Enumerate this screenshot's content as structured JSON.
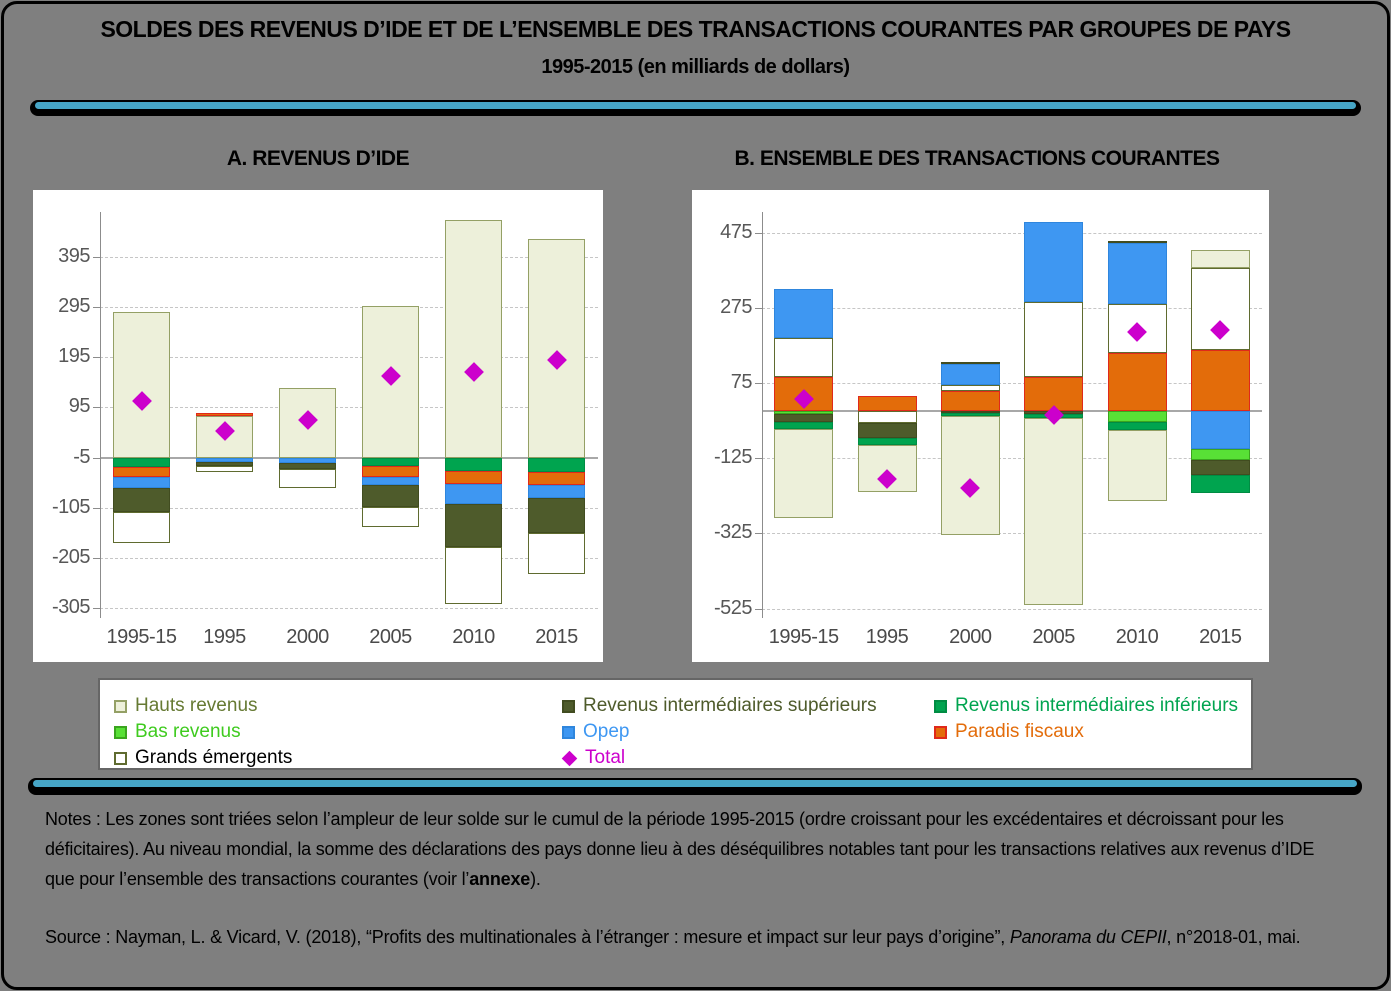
{
  "header": {
    "title": "SOLDES DES REVENUS D’IDE ET DE L’ENSEMBLE DES TRANSACTIONS COURANTES PAR GROUPES DE PAYS",
    "subtitle": "1995-2015 (en milliards de dollars)"
  },
  "colors": {
    "background": "#7f7f7f",
    "panel_bg": "#ffffff",
    "divider_black": "#000000",
    "divider_teal": "#46a5c6",
    "grid": "#c6c6c6",
    "baseline": "#a8a8a8",
    "axis": "#8c8c8c",
    "tick_text": "#575757"
  },
  "series_meta": {
    "hauts_revenus": {
      "label": "Hauts revenus",
      "fill": "#edf0da",
      "border": "#94a065",
      "text": "#667a33"
    },
    "rev_int_sup": {
      "label": "Revenus intermédiaires supérieurs",
      "fill": "#4e5b2b",
      "border": "#414c20",
      "text": "#4e5b2b"
    },
    "rev_int_inf": {
      "label": "Revenus intermédiaires inférieurs",
      "fill": "#00a44f",
      "border": "#008c43",
      "text": "#00a44f"
    },
    "bas_revenus": {
      "label": "Bas revenus",
      "fill": "#58e036",
      "border": "#3aa51e",
      "text": "#3fcb1f"
    },
    "opep": {
      "label": "Opep",
      "fill": "#3e97f2",
      "border": "#2f86dd",
      "text": "#3e97f2"
    },
    "paradis_fiscaux": {
      "label": "Paradis fiscaux",
      "fill": "#e36c0a",
      "border": "#e0291a",
      "text": "#e36c0a"
    },
    "grands_emergents": {
      "label": "Grands émergents",
      "fill": "#ffffff",
      "border": "#5f6b2f",
      "text": "#000000"
    },
    "total": {
      "label": "Total",
      "fill": "#cc00cc",
      "border": "#b000b0",
      "text": "#cc00cc"
    }
  },
  "legend": {
    "order": [
      "hauts_revenus",
      "rev_int_sup",
      "rev_int_inf",
      "bas_revenus",
      "opep",
      "paradis_fiscaux",
      "grands_emergents",
      "total"
    ]
  },
  "chart_data": [
    {
      "id": "revenus_ide",
      "type": "bar",
      "title": "A. REVENUS D’IDE",
      "unit": "milliards de dollars",
      "categories": [
        "1995-15",
        "1995",
        "2000",
        "2005",
        "2010",
        "2015"
      ],
      "yticks": [
        395,
        295,
        195,
        95,
        -5,
        -105,
        -205,
        -305
      ],
      "ylim": [
        -325,
        485
      ],
      "baseline": -5,
      "grid": true,
      "bars": [
        {
          "category": "1995-15",
          "total": 107,
          "segments": [
            {
              "s": "hauts_revenus",
              "v": [
                -5,
                285
              ]
            },
            {
              "s": "rev_int_inf",
              "v": [
                -5,
                -24
              ]
            },
            {
              "s": "paradis_fiscaux",
              "v": [
                -24,
                -43
              ]
            },
            {
              "s": "opep",
              "v": [
                -43,
                -65
              ]
            },
            {
              "s": "rev_int_sup",
              "v": [
                -65,
                -113
              ]
            },
            {
              "s": "grands_emergents",
              "v": [
                -113,
                -176
              ]
            }
          ]
        },
        {
          "category": "1995",
          "total": 48,
          "segments": [
            {
              "s": "hauts_revenus",
              "v": [
                -5,
                78
              ]
            },
            {
              "s": "paradis_fiscaux",
              "v": [
                78,
                83
              ]
            },
            {
              "s": "opep",
              "v": [
                -5,
                -14
              ]
            },
            {
              "s": "rev_int_sup",
              "v": [
                -14,
                -22
              ]
            },
            {
              "s": "grands_emergents",
              "v": [
                -22,
                -33
              ]
            }
          ]
        },
        {
          "category": "2000",
          "total": 70,
          "segments": [
            {
              "s": "hauts_revenus",
              "v": [
                -5,
                133
              ]
            },
            {
              "s": "opep",
              "v": [
                -5,
                -16
              ]
            },
            {
              "s": "rev_int_sup",
              "v": [
                -16,
                -28
              ]
            },
            {
              "s": "grands_emergents",
              "v": [
                -28,
                -66
              ]
            }
          ]
        },
        {
          "category": "2005",
          "total": 158,
          "segments": [
            {
              "s": "hauts_revenus",
              "v": [
                -5,
                297
              ]
            },
            {
              "s": "rev_int_inf",
              "v": [
                -5,
                -21
              ]
            },
            {
              "s": "paradis_fiscaux",
              "v": [
                -21,
                -43
              ]
            },
            {
              "s": "opep",
              "v": [
                -43,
                -59
              ]
            },
            {
              "s": "rev_int_sup",
              "v": [
                -59,
                -103
              ]
            },
            {
              "s": "grands_emergents",
              "v": [
                -103,
                -143
              ]
            }
          ]
        },
        {
          "category": "2010",
          "total": 165,
          "segments": [
            {
              "s": "hauts_revenus",
              "v": [
                -5,
                470
              ]
            },
            {
              "s": "rev_int_inf",
              "v": [
                -5,
                -32
              ]
            },
            {
              "s": "paradis_fiscaux",
              "v": [
                -32,
                -57
              ]
            },
            {
              "s": "opep",
              "v": [
                -57,
                -97
              ]
            },
            {
              "s": "rev_int_sup",
              "v": [
                -97,
                -184
              ]
            },
            {
              "s": "grands_emergents",
              "v": [
                -184,
                -297
              ]
            }
          ]
        },
        {
          "category": "2015",
          "total": 190,
          "segments": [
            {
              "s": "hauts_revenus",
              "v": [
                -5,
                432
              ]
            },
            {
              "s": "rev_int_inf",
              "v": [
                -5,
                -33
              ]
            },
            {
              "s": "paradis_fiscaux",
              "v": [
                -33,
                -59
              ]
            },
            {
              "s": "opep",
              "v": [
                -59,
                -85
              ]
            },
            {
              "s": "rev_int_sup",
              "v": [
                -85,
                -155
              ]
            },
            {
              "s": "grands_emergents",
              "v": [
                -155,
                -238
              ]
            }
          ]
        }
      ]
    },
    {
      "id": "transactions_courantes",
      "type": "bar",
      "title": "B. ENSEMBLE DES TRANSACTIONS COURANTES",
      "unit": "milliards de dollars",
      "categories": [
        "1995-15",
        "1995",
        "2000",
        "2005",
        "2010",
        "2015"
      ],
      "yticks": [
        475,
        275,
        75,
        -125,
        -325,
        -525
      ],
      "ylim": [
        -550,
        530
      ],
      "baseline": 0,
      "grid": true,
      "bars": [
        {
          "category": "1995-15",
          "total": 32,
          "segments": [
            {
              "s": "paradis_fiscaux",
              "v": [
                0,
                90
              ]
            },
            {
              "s": "grands_emergents",
              "v": [
                90,
                195
              ]
            },
            {
              "s": "opep",
              "v": [
                195,
                325
              ]
            },
            {
              "s": "bas_revenus",
              "v": [
                0,
                -8
              ]
            },
            {
              "s": "rev_int_sup",
              "v": [
                -8,
                -28
              ]
            },
            {
              "s": "rev_int_inf",
              "v": [
                -28,
                -48
              ]
            },
            {
              "s": "hauts_revenus",
              "v": [
                -48,
                -285
              ]
            }
          ]
        },
        {
          "category": "1995",
          "total": -180,
          "segments": [
            {
              "s": "paradis_fiscaux",
              "v": [
                0,
                40
              ]
            },
            {
              "s": "grands_emergents",
              "v": [
                0,
                -30
              ]
            },
            {
              "s": "rev_int_sup",
              "v": [
                -30,
                -72
              ]
            },
            {
              "s": "rev_int_inf",
              "v": [
                -72,
                -90
              ]
            },
            {
              "s": "hauts_revenus",
              "v": [
                -90,
                -215
              ]
            }
          ]
        },
        {
          "category": "2000",
          "total": -205,
          "segments": [
            {
              "s": "paradis_fiscaux",
              "v": [
                0,
                55
              ]
            },
            {
              "s": "grands_emergents",
              "v": [
                55,
                70
              ]
            },
            {
              "s": "opep",
              "v": [
                70,
                125
              ]
            },
            {
              "s": "rev_int_sup",
              "v": [
                125,
                132
              ]
            },
            {
              "s": "rev_int_sup",
              "v": [
                0,
                -6
              ]
            },
            {
              "s": "rev_int_inf",
              "v": [
                -6,
                -13
              ]
            },
            {
              "s": "hauts_revenus",
              "v": [
                -13,
                -330
              ]
            }
          ]
        },
        {
          "category": "2005",
          "total": -10,
          "segments": [
            {
              "s": "paradis_fiscaux",
              "v": [
                0,
                92
              ]
            },
            {
              "s": "grands_emergents",
              "v": [
                92,
                290
              ]
            },
            {
              "s": "opep",
              "v": [
                290,
                503
              ]
            },
            {
              "s": "rev_int_sup",
              "v": [
                0,
                -8
              ]
            },
            {
              "s": "rev_int_inf",
              "v": [
                -8,
                -19
              ]
            },
            {
              "s": "hauts_revenus",
              "v": [
                -19,
                -515
              ]
            }
          ]
        },
        {
          "category": "2010",
          "total": 210,
          "segments": [
            {
              "s": "paradis_fiscaux",
              "v": [
                0,
                155
              ]
            },
            {
              "s": "grands_emergents",
              "v": [
                155,
                285
              ]
            },
            {
              "s": "opep",
              "v": [
                285,
                448
              ]
            },
            {
              "s": "rev_int_sup",
              "v": [
                448,
                452
              ]
            },
            {
              "s": "bas_revenus",
              "v": [
                0,
                -28
              ]
            },
            {
              "s": "rev_int_inf",
              "v": [
                -28,
                -50
              ]
            },
            {
              "s": "hauts_revenus",
              "v": [
                -50,
                -240
              ]
            }
          ]
        },
        {
          "category": "2015",
          "total": 215,
          "segments": [
            {
              "s": "paradis_fiscaux",
              "v": [
                0,
                162
              ]
            },
            {
              "s": "grands_emergents",
              "v": [
                162,
                380
              ]
            },
            {
              "s": "hauts_revenus",
              "v": [
                380,
                428
              ]
            },
            {
              "s": "opep",
              "v": [
                0,
                -100
              ]
            },
            {
              "s": "bas_revenus",
              "v": [
                -100,
                -130
              ]
            },
            {
              "s": "rev_int_sup",
              "v": [
                -130,
                -170
              ]
            },
            {
              "s": "rev_int_inf",
              "v": [
                -170,
                -218
              ]
            }
          ]
        }
      ]
    }
  ],
  "notes": {
    "part1": "Notes : Les zones sont triées selon l’ampleur de leur solde sur le cumul de la période 1995-2015 (ordre croissant pour les excédentaires et décroissant pour les déficitaires). Au niveau mondial, la somme des déclarations des pays donne lieu à des déséquilibres notables tant pour les transactions relatives aux revenus d’IDE que pour l’ensemble des transactions courantes (voir l’",
    "bold": "annexe",
    "part2": ")."
  },
  "source": {
    "part1": "Source : Nayman, L. & Vicard, V. (2018), “Profits des multinationales à l’étranger : mesure et impact sur leur pays d’origine”, ",
    "italic": "Panorama du CEPII",
    "part2": ", n°2018-01, mai."
  }
}
